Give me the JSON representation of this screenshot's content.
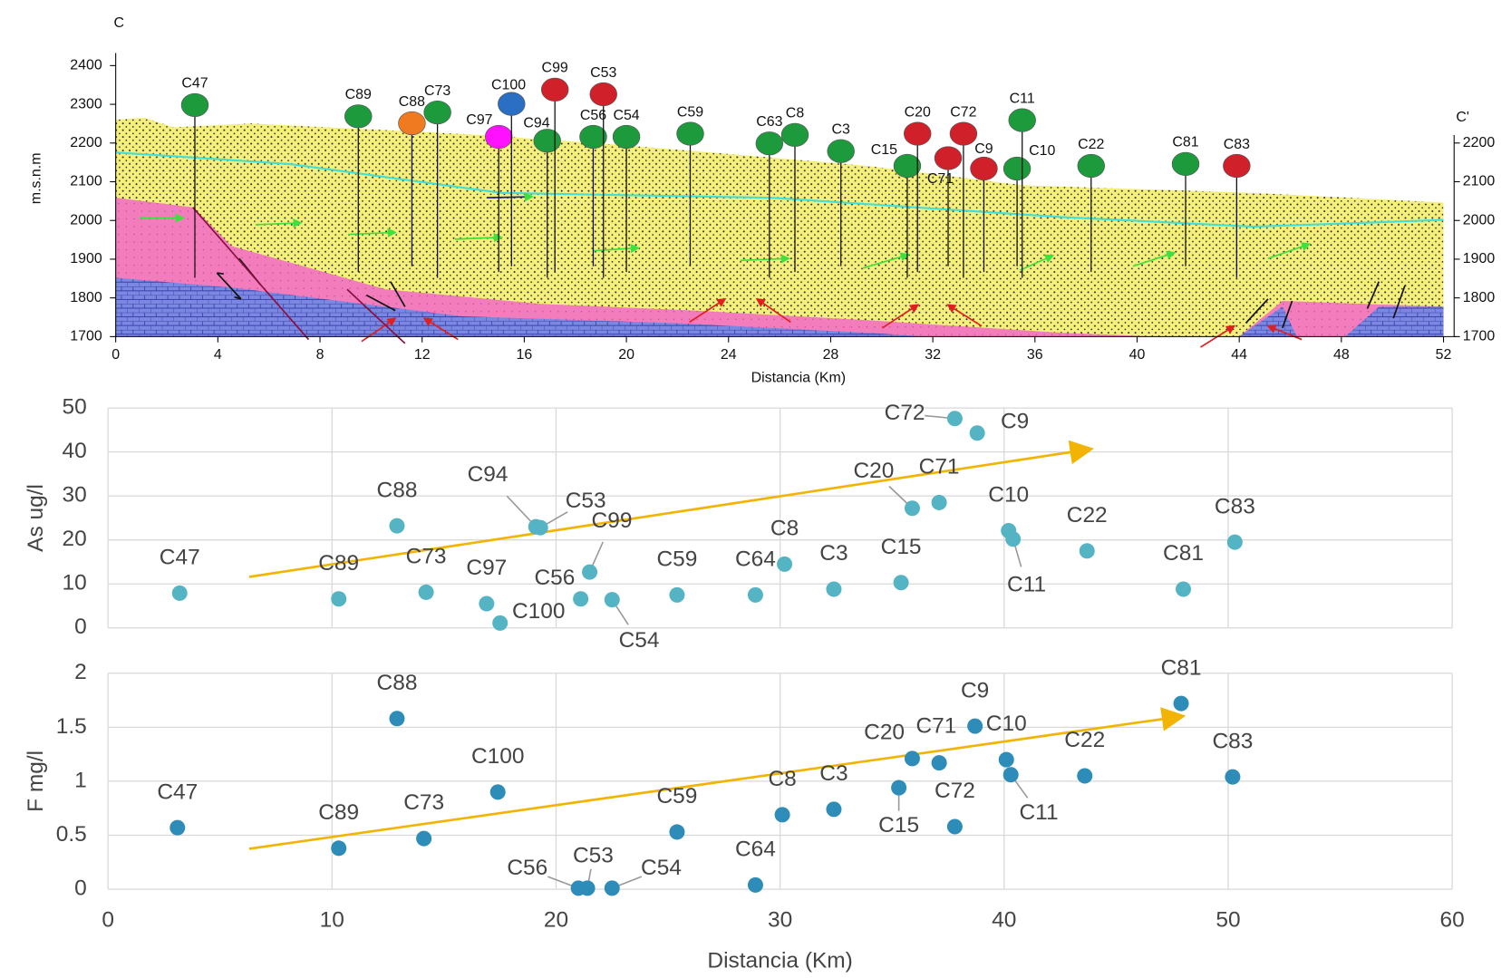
{
  "chart_data": [
    {
      "type": "cross-section",
      "title": "C",
      "end_label": "C'",
      "ylabel": "m.s.n.m",
      "xlabel": "Distancia (Km)",
      "xlim": [
        0,
        52
      ],
      "xticks": [
        0,
        4,
        8,
        12,
        16,
        20,
        24,
        28,
        32,
        36,
        40,
        44,
        48,
        52
      ],
      "ylim": [
        1700,
        2400
      ],
      "yticks": [
        1700,
        1800,
        1900,
        2000,
        2100,
        2200,
        2300,
        2400
      ],
      "y2lim": [
        1700,
        2400
      ],
      "y2ticks": [
        1700,
        1800,
        1900,
        2000,
        2100,
        2200
      ],
      "wells": {
        "labels": [
          "C47",
          "C89",
          "C88",
          "C73",
          "C97",
          "C100",
          "C94",
          "C99",
          "C56",
          "C53",
          "C54",
          "C59",
          "C63",
          "C8",
          "C3",
          "C15",
          "C20",
          "C71",
          "C72",
          "C9",
          "C10",
          "C11",
          "C22",
          "C81",
          "C83"
        ],
        "x": [
          3.1,
          9.5,
          11.6,
          12.6,
          15.0,
          15.5,
          16.9,
          17.2,
          18.7,
          19.1,
          20.0,
          22.5,
          25.6,
          26.6,
          28.4,
          31.0,
          31.4,
          32.6,
          33.2,
          34.0,
          35.3,
          35.5,
          38.2,
          41.9,
          43.9
        ],
        "y": [
          2298,
          2269,
          2251,
          2279,
          2216,
          2301,
          2206,
          2338,
          2216,
          2326,
          2216,
          2224,
          2199,
          2221,
          2179,
          2141,
          2224,
          2161,
          2224,
          2134,
          2134,
          2259,
          2141,
          2146,
          2141
        ],
        "colors": [
          "#1c9a3c",
          "#1c9a3c",
          "#f07a20",
          "#1c9a3c",
          "#ff10ff",
          "#2a6fc4",
          "#1c9a3c",
          "#d0202a",
          "#1c9a3c",
          "#d0202a",
          "#1c9a3c",
          "#1c9a3c",
          "#1c9a3c",
          "#1c9a3c",
          "#1c9a3c",
          "#1c9a3c",
          "#d0202a",
          "#d0202a",
          "#d0202a",
          "#d0202a",
          "#1c9a3c",
          "#1c9a3c",
          "#1c9a3c",
          "#1c9a3c",
          "#d0202a"
        ]
      }
    },
    {
      "type": "scatter",
      "ylabel": "As ug/l",
      "color": "#55b4c4",
      "trend_color": "#f2b400",
      "xlim": [
        0,
        60
      ],
      "ylim": [
        0,
        50
      ],
      "yticks": [
        0,
        10,
        20,
        30,
        40,
        50
      ],
      "grid": true,
      "labels": [
        "C47",
        "C89",
        "C88",
        "C73",
        "C97",
        "C100",
        "C94",
        "C53",
        "C99",
        "C56",
        "C54",
        "C59",
        "C64",
        "C8",
        "C3",
        "C15",
        "C20",
        "C71",
        "C72",
        "C9",
        "C10",
        "C11",
        "C22",
        "C81",
        "C83"
      ],
      "x": [
        3.2,
        10.3,
        12.9,
        14.2,
        16.9,
        17.5,
        19.1,
        19.3,
        21.5,
        21.1,
        22.5,
        25.4,
        28.9,
        30.2,
        32.4,
        35.4,
        35.9,
        37.1,
        37.8,
        38.8,
        40.2,
        40.4,
        43.7,
        48.0,
        50.3
      ],
      "values": [
        7.9,
        6.6,
        23.2,
        8.1,
        5.5,
        1.1,
        23.0,
        22.8,
        12.7,
        6.6,
        6.4,
        7.5,
        7.5,
        14.5,
        8.8,
        10.3,
        27.2,
        28.5,
        47.6,
        44.3,
        22.1,
        20.2,
        17.5,
        8.8,
        19.5
      ],
      "trend": {
        "x": [
          6.3,
          43.8
        ],
        "y": [
          11.6,
          40.6
        ]
      }
    },
    {
      "type": "scatter",
      "ylabel": "F mg/l",
      "xlabel": "Distancia (Km)",
      "color": "#2e8cb8",
      "trend_color": "#f2b400",
      "xlim": [
        0,
        60
      ],
      "xticks": [
        0,
        10,
        20,
        30,
        40,
        50,
        60
      ],
      "ylim": [
        0,
        2
      ],
      "yticks": [
        0,
        0.5,
        1,
        1.5,
        2
      ],
      "grid": true,
      "labels": [
        "C47",
        "C89",
        "C88",
        "C73",
        "C100",
        "C56",
        "C53",
        "C54",
        "C59",
        "C64",
        "C8",
        "C3",
        "C15",
        "C20",
        "C71",
        "C72",
        "C9",
        "C10",
        "C11",
        "C22",
        "C81",
        "C83"
      ],
      "x": [
        3.1,
        10.3,
        12.9,
        14.1,
        17.4,
        21.0,
        21.4,
        22.5,
        25.4,
        28.9,
        30.1,
        32.4,
        35.3,
        35.9,
        37.1,
        37.8,
        38.7,
        40.1,
        40.3,
        43.6,
        47.9,
        50.2
      ],
      "values": [
        0.57,
        0.38,
        1.58,
        0.47,
        0.9,
        0.01,
        0.01,
        0.01,
        0.53,
        0.04,
        0.69,
        0.74,
        0.94,
        1.21,
        1.17,
        0.58,
        1.51,
        1.2,
        1.06,
        1.05,
        1.72,
        1.04
      ],
      "trend": {
        "x": [
          6.3,
          47.9
        ],
        "y": [
          0.375,
          1.6
        ]
      }
    }
  ]
}
